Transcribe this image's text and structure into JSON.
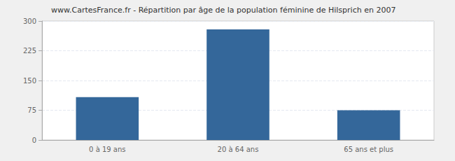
{
  "chart_data": {
    "type": "bar",
    "title": "www.CartesFrance.fr - Répartition par âge de la population féminine de Hilsprich en 2007",
    "categories": [
      "0 à 19 ans",
      "20 à 64 ans",
      "65 ans et plus"
    ],
    "values": [
      108,
      279,
      75
    ],
    "color": "#34679a",
    "ylim": [
      0,
      300
    ],
    "yticks": [
      0,
      75,
      150,
      225,
      300
    ],
    "grid": true
  }
}
